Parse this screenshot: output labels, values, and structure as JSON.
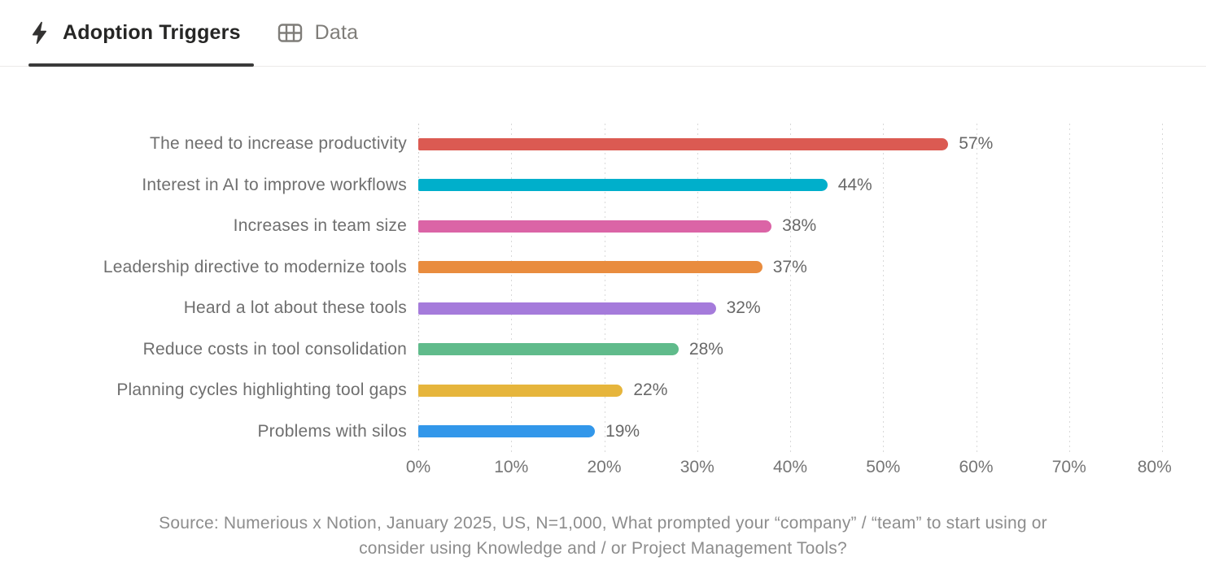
{
  "tabs": [
    {
      "label": "Adoption Triggers",
      "icon": "lightning-icon",
      "active": true
    },
    {
      "label": "Data",
      "icon": "table-icon",
      "active": false
    }
  ],
  "chart_data": {
    "type": "bar",
    "orientation": "horizontal",
    "title": "Adoption Triggers",
    "categories": [
      "The need to increase productivity",
      "Interest in AI to improve workflows",
      "Increases in team size",
      "Leadership directive to modernize tools",
      "Heard a lot about these tools",
      "Reduce costs in tool consolidation",
      "Planning cycles highlighting tool gaps",
      "Problems with silos"
    ],
    "values": [
      57,
      44,
      38,
      37,
      32,
      28,
      22,
      19
    ],
    "value_labels": [
      "57%",
      "44%",
      "38%",
      "37%",
      "32%",
      "28%",
      "22%",
      "19%"
    ],
    "bar_colors": [
      "#db5a52",
      "#00afcb",
      "#db64a6",
      "#e98c3e",
      "#a57bdb",
      "#60bb8b",
      "#e6b53c",
      "#3297ea"
    ],
    "xlim": [
      0,
      80
    ],
    "x_ticks": [
      "0%",
      "10%",
      "20%",
      "30%",
      "40%",
      "50%",
      "60%",
      "70%",
      "80%"
    ],
    "grid": "dotted-vertical",
    "legend": "none"
  },
  "source": {
    "lines": [
      "Source: Numerious x Notion, January 2025, US, N=1,000, What prompted your “company” / “team” to start using or",
      "consider using Knowledge and / or Project Management Tools?"
    ]
  },
  "ui_colors": {
    "tab_active_text": "#262625",
    "tab_active_underline": "#3a3a3a",
    "tab_inactive_text": "#7f7d79",
    "category_label_gray": "#6f6f6f",
    "value_label_gray": "#686868",
    "tick_label_gray": "#757575",
    "source_gray": "#8d8d8d",
    "gridline_gray": "#d9d9d9",
    "header_border": "#eceae8",
    "background": "#ffffff"
  }
}
